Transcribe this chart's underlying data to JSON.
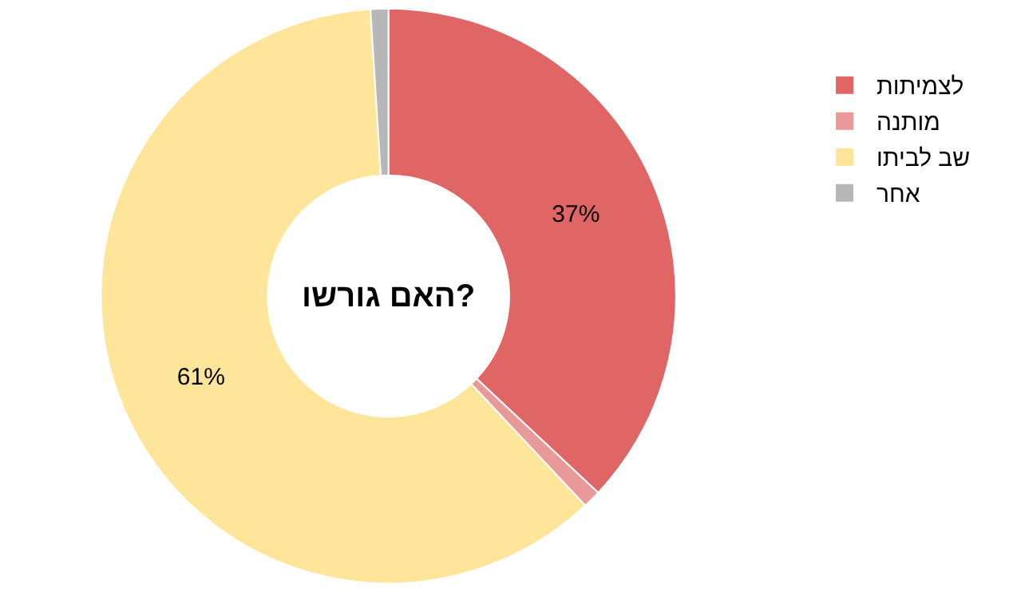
{
  "chart_data": {
    "type": "donut",
    "title": "האם גורשו?",
    "categories": [
      "לצמיתות",
      "מותנה",
      "שב לביתו",
      "אחר"
    ],
    "values": [
      37,
      1,
      61,
      1
    ],
    "colors": [
      "#e06666",
      "#ea9999",
      "#ffe599",
      "#b7b7b7"
    ],
    "value_labels": [
      "37%",
      null,
      "61%",
      null
    ],
    "legend": "top right"
  }
}
